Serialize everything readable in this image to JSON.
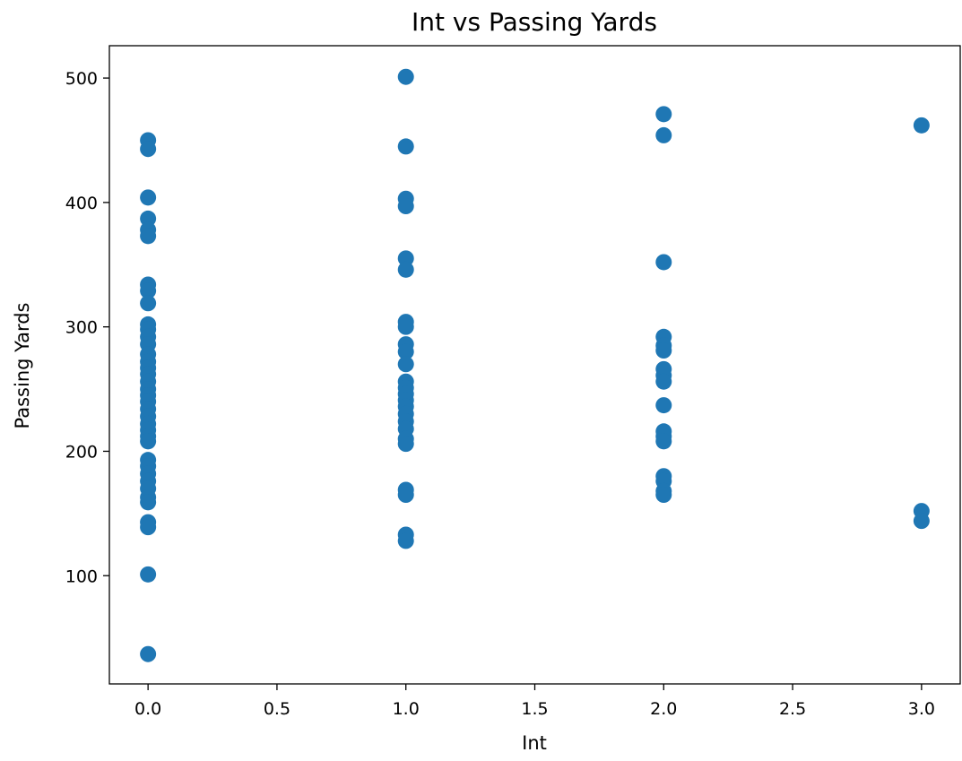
{
  "chart_data": {
    "type": "scatter",
    "title": "Int vs Passing Yards",
    "xlabel": "Int",
    "ylabel": "Passing Yards",
    "xlim": [
      -0.15,
      3.15
    ],
    "ylim": [
      13,
      526
    ],
    "xticks": [
      0.0,
      0.5,
      1.0,
      1.5,
      2.0,
      2.5,
      3.0
    ],
    "xtick_labels": [
      "0.0",
      "0.5",
      "1.0",
      "1.5",
      "2.0",
      "2.5",
      "3.0"
    ],
    "yticks": [
      100,
      200,
      300,
      400,
      500
    ],
    "ytick_labels": [
      "100",
      "200",
      "300",
      "400",
      "500"
    ],
    "grid": false,
    "color": "#1f77b4",
    "points": [
      {
        "x": 0,
        "y": 450
      },
      {
        "x": 0,
        "y": 443
      },
      {
        "x": 0,
        "y": 404
      },
      {
        "x": 0,
        "y": 387
      },
      {
        "x": 0,
        "y": 378
      },
      {
        "x": 0,
        "y": 373
      },
      {
        "x": 0,
        "y": 334
      },
      {
        "x": 0,
        "y": 329
      },
      {
        "x": 0,
        "y": 319
      },
      {
        "x": 0,
        "y": 302
      },
      {
        "x": 0,
        "y": 298
      },
      {
        "x": 0,
        "y": 292
      },
      {
        "x": 0,
        "y": 286
      },
      {
        "x": 0,
        "y": 278
      },
      {
        "x": 0,
        "y": 272
      },
      {
        "x": 0,
        "y": 267
      },
      {
        "x": 0,
        "y": 262
      },
      {
        "x": 0,
        "y": 256
      },
      {
        "x": 0,
        "y": 250
      },
      {
        "x": 0,
        "y": 245
      },
      {
        "x": 0,
        "y": 240
      },
      {
        "x": 0,
        "y": 234
      },
      {
        "x": 0,
        "y": 228
      },
      {
        "x": 0,
        "y": 222
      },
      {
        "x": 0,
        "y": 217
      },
      {
        "x": 0,
        "y": 212
      },
      {
        "x": 0,
        "y": 208
      },
      {
        "x": 0,
        "y": 193
      },
      {
        "x": 0,
        "y": 188
      },
      {
        "x": 0,
        "y": 182
      },
      {
        "x": 0,
        "y": 176
      },
      {
        "x": 0,
        "y": 170
      },
      {
        "x": 0,
        "y": 163
      },
      {
        "x": 0,
        "y": 159
      },
      {
        "x": 0,
        "y": 143
      },
      {
        "x": 0,
        "y": 139
      },
      {
        "x": 0,
        "y": 101
      },
      {
        "x": 0,
        "y": 37
      },
      {
        "x": 1,
        "y": 501
      },
      {
        "x": 1,
        "y": 445
      },
      {
        "x": 1,
        "y": 403
      },
      {
        "x": 1,
        "y": 397
      },
      {
        "x": 1,
        "y": 355
      },
      {
        "x": 1,
        "y": 346
      },
      {
        "x": 1,
        "y": 304
      },
      {
        "x": 1,
        "y": 300
      },
      {
        "x": 1,
        "y": 286
      },
      {
        "x": 1,
        "y": 280
      },
      {
        "x": 1,
        "y": 270
      },
      {
        "x": 1,
        "y": 256
      },
      {
        "x": 1,
        "y": 251
      },
      {
        "x": 1,
        "y": 246
      },
      {
        "x": 1,
        "y": 241
      },
      {
        "x": 1,
        "y": 236
      },
      {
        "x": 1,
        "y": 230
      },
      {
        "x": 1,
        "y": 224
      },
      {
        "x": 1,
        "y": 218
      },
      {
        "x": 1,
        "y": 210
      },
      {
        "x": 1,
        "y": 206
      },
      {
        "x": 1,
        "y": 169
      },
      {
        "x": 1,
        "y": 165
      },
      {
        "x": 1,
        "y": 133
      },
      {
        "x": 1,
        "y": 128
      },
      {
        "x": 2,
        "y": 471
      },
      {
        "x": 2,
        "y": 454
      },
      {
        "x": 2,
        "y": 352
      },
      {
        "x": 2,
        "y": 292
      },
      {
        "x": 2,
        "y": 285
      },
      {
        "x": 2,
        "y": 281
      },
      {
        "x": 2,
        "y": 266
      },
      {
        "x": 2,
        "y": 261
      },
      {
        "x": 2,
        "y": 256
      },
      {
        "x": 2,
        "y": 237
      },
      {
        "x": 2,
        "y": 216
      },
      {
        "x": 2,
        "y": 212
      },
      {
        "x": 2,
        "y": 208
      },
      {
        "x": 2,
        "y": 180
      },
      {
        "x": 2,
        "y": 176
      },
      {
        "x": 2,
        "y": 168
      },
      {
        "x": 2,
        "y": 165
      },
      {
        "x": 3,
        "y": 462
      },
      {
        "x": 3,
        "y": 152
      },
      {
        "x": 3,
        "y": 144
      }
    ]
  }
}
